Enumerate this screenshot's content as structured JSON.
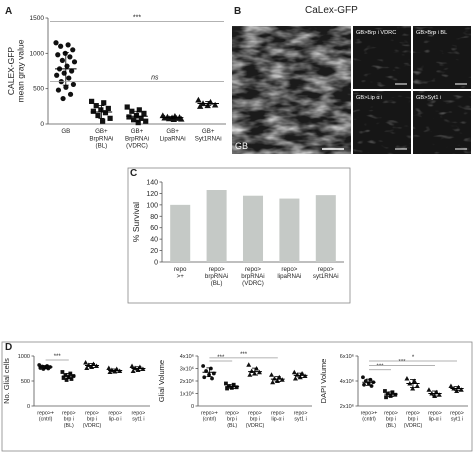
{
  "panels": {
    "A": "A",
    "B": "B",
    "C": "C",
    "D": "D"
  },
  "colors": {
    "bar": "#c5c9c6",
    "scatter": "#111111",
    "stat_line": "#999999",
    "frame": "#888888"
  },
  "panel_b": {
    "title": "CaLex-GFP",
    "main_label": "GB",
    "insets": [
      "GB>Brp i VDRC",
      "GB>Brp i BL",
      "GB>Lip α i",
      "GB>Syt1 i"
    ]
  },
  "chart_data": [
    {
      "id": "A",
      "type": "scatter",
      "ylabel": "CALEX-GFP\nmean gray value",
      "ylim": [
        0,
        1500
      ],
      "yticks": [
        0,
        500,
        1000,
        1500
      ],
      "categories": [
        "GB",
        "GB+\nBrpRNAi\n(BL)",
        "GB+\nBrpRNAi\n(VDRC)",
        "GB+\nLipaRNAi",
        "GB+\nSyt1RNAi"
      ],
      "points": [
        [
          1150,
          1120,
          1100,
          1050,
          1000,
          980,
          950,
          900,
          880,
          820,
          780,
          750,
          720,
          690,
          650,
          600,
          560,
          520,
          480,
          420,
          360
        ],
        [
          320,
          300,
          260,
          220,
          200,
          180,
          160,
          120,
          80,
          40
        ],
        [
          240,
          200,
          180,
          150,
          120,
          100,
          80,
          60,
          40,
          20
        ],
        [
          120,
          110,
          100,
          95,
          90,
          85,
          80,
          75,
          70,
          65
        ],
        [
          340,
          310,
          290,
          270,
          260,
          250
        ]
      ],
      "mean": [
        780,
        170,
        110,
        90,
        290
      ],
      "sd": [
        230,
        90,
        70,
        15,
        30
      ],
      "annotations": [
        {
          "label": "***",
          "from": 0,
          "to": 4,
          "y": 1450
        },
        {
          "label": "ns",
          "from": 1,
          "to": 4,
          "y": 600
        }
      ]
    },
    {
      "id": "C",
      "type": "bar",
      "ylabel": "% Survival",
      "ylim": [
        0,
        140
      ],
      "yticks": [
        0,
        20,
        40,
        60,
        80,
        100,
        120,
        140
      ],
      "categories": [
        "repo\n>+",
        "repo>\nbrpRNAi\n(BL)",
        "repo>\nbrpRNAi\n(VDRC)",
        "repo>\nlipaRNAi",
        "repo>\nsyt1RNAi"
      ],
      "values": [
        100,
        126,
        116,
        111,
        117
      ]
    },
    {
      "id": "D1",
      "type": "scatter",
      "ylabel": "No. Glial cells",
      "ylim": [
        0,
        1000
      ],
      "yticks": [
        0,
        500,
        1000
      ],
      "categories": [
        "repo>+\n(cntrl)",
        "repo>\nbrp i\n(BL)",
        "repo>\nbrp i\n(VDRC)",
        "repo>\nlip-α i",
        "repo>\nsyt1 i"
      ],
      "points": [
        [
          820,
          800,
          790,
          780,
          770,
          760,
          750,
          740
        ],
        [
          680,
          650,
          620,
          600,
          580,
          560,
          540,
          520
        ],
        [
          870,
          840,
          820,
          800,
          780,
          760
        ],
        [
          760,
          740,
          720,
          700,
          690,
          680
        ],
        [
          800,
          780,
          760,
          740,
          720,
          700
        ]
      ],
      "mean": [
        780,
        600,
        810,
        710,
        750
      ],
      "sd": [
        30,
        50,
        40,
        30,
        35
      ],
      "annotations": [
        {
          "label": "***",
          "from": 0,
          "to": 1,
          "y": 920
        }
      ]
    },
    {
      "id": "D2",
      "type": "scatter",
      "ylabel": "Glial Volume",
      "ylim": [
        0,
        4000000
      ],
      "yticks": [
        0,
        1000000,
        2000000,
        3000000,
        4000000
      ],
      "ytick_labels": [
        "0",
        "1x10⁶",
        "2x10⁶",
        "3x10⁶",
        "4x10⁶"
      ],
      "categories": [
        "repo>+\n(cntrl)",
        "repo>\nbrp i\n(BL)",
        "repo>\nbrp i\n(VDRC)",
        "repo>\nlip-α i",
        "repo>\nsyt1 i"
      ],
      "points": [
        [
          3200000,
          3000000,
          2800000,
          2600000,
          2500000,
          2300000,
          2200000
        ],
        [
          1800000,
          1700000,
          1600000,
          1500000,
          1450000,
          1400000
        ],
        [
          3300000,
          3000000,
          2800000,
          2700000,
          2600000,
          2500000
        ],
        [
          2500000,
          2300000,
          2200000,
          2100000,
          2000000,
          1900000
        ],
        [
          2700000,
          2600000,
          2500000,
          2400000,
          2300000,
          2200000
        ]
      ],
      "mean": [
        2700000,
        1550000,
        2750000,
        2150000,
        2450000
      ],
      "sd": [
        350000,
        150000,
        280000,
        200000,
        180000
      ],
      "annotations": [
        {
          "label": "***",
          "from": 0,
          "to": 1,
          "y": 3600000
        },
        {
          "label": "***",
          "from": 0,
          "to": 3,
          "y": 3850000
        }
      ]
    },
    {
      "id": "D3",
      "type": "scatter",
      "ylabel": "DAPI Volume",
      "ylim": [
        2000000,
        6000000
      ],
      "yticks": [
        2000000,
        4000000,
        6000000
      ],
      "ytick_labels": [
        "2x10⁶",
        "4x10⁶",
        "6x10⁶"
      ],
      "categories": [
        "repo>+\n(cntrl)",
        "repo>\nbrp i\n(BL)",
        "repo>\nbrp i\n(VDRC)",
        "repo>\nlip-α i",
        "repo>\nsyt1 i"
      ],
      "points": [
        [
          4300000,
          4100000,
          4000000,
          3900000,
          3800000,
          3700000,
          3600000
        ],
        [
          3200000,
          3100000,
          3000000,
          2900000,
          2800000,
          2700000
        ],
        [
          4200000,
          4000000,
          3800000,
          3600000,
          3400000
        ],
        [
          3300000,
          3100000,
          3000000,
          2900000,
          2800000
        ],
        [
          3600000,
          3500000,
          3400000,
          3300000,
          3200000
        ]
      ],
      "mean": [
        3900000,
        2950000,
        3800000,
        3000000,
        3400000
      ],
      "sd": [
        250000,
        180000,
        320000,
        200000,
        150000
      ],
      "annotations": [
        {
          "label": "***",
          "from": 0,
          "to": 1,
          "y": 4900000
        },
        {
          "label": "***",
          "from": 0,
          "to": 3,
          "y": 5250000
        },
        {
          "label": "*",
          "from": 0,
          "to": 4,
          "y": 5600000
        }
      ]
    }
  ]
}
